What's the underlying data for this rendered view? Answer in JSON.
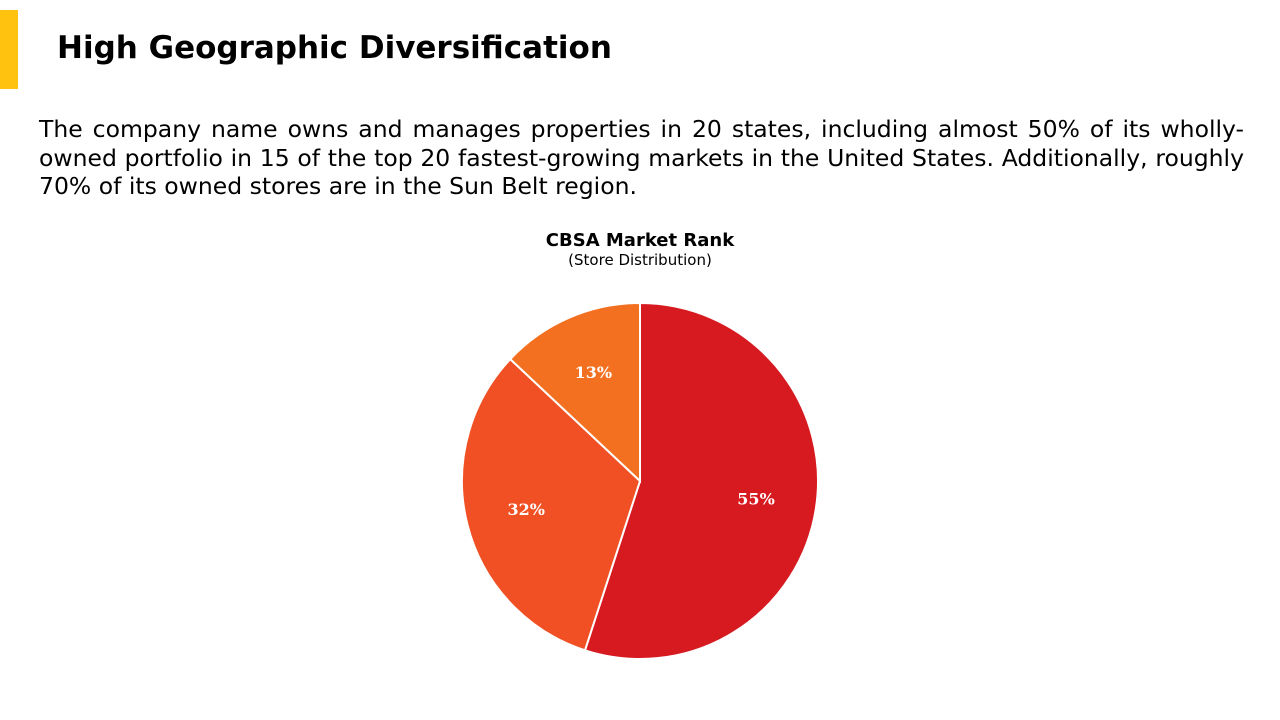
{
  "slide": {
    "title": "High Geographic Diversification",
    "body": "The company name owns and manages properties in 20 states, including almost 50% of its wholly-owned portfolio in 15 of the top 20 fastest-growing markets in the United States. Additionally, roughly 70% of its owned stores are in the Sun Belt region.",
    "accent_color": "#FFC20E"
  },
  "chart_data": {
    "type": "pie",
    "title": "CBSA Market Rank",
    "subtitle": "(Store Distribution)",
    "slices": [
      {
        "label": "55%",
        "value": 55,
        "color": "#D71920"
      },
      {
        "label": "32%",
        "value": 32,
        "color": "#F05023"
      },
      {
        "label": "13%",
        "value": 13,
        "color": "#F37021"
      }
    ],
    "start_angle_deg": 0,
    "direction": "clockwise",
    "legend": "none"
  }
}
